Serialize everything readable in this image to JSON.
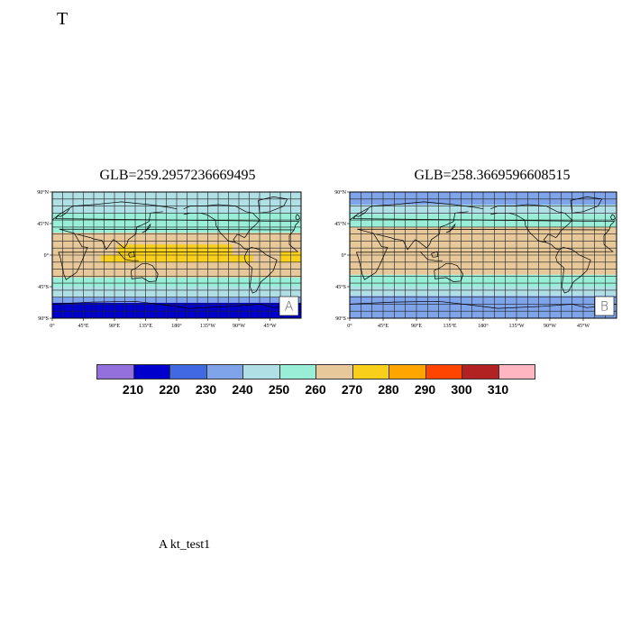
{
  "figure": {
    "title": "T",
    "caption": "A  kt_test1"
  },
  "panels": [
    {
      "title": "GLB=259.2957236669495",
      "tag": "A",
      "bands": [
        {
          "lat_top": 90,
          "lat_bottom": 80,
          "value_class": 4
        },
        {
          "lat_top": 80,
          "lat_bottom": 60,
          "value_class": 4
        },
        {
          "lat_top": 60,
          "lat_bottom": 42,
          "value_class": 5
        },
        {
          "lat_top": 42,
          "lat_bottom": 32,
          "value_class": 5
        },
        {
          "lat_top": 32,
          "lat_bottom": -20,
          "value_class": 6
        },
        {
          "lat_top": -20,
          "lat_bottom": -32,
          "value_class": 6
        },
        {
          "lat_top": -32,
          "lat_bottom": -45,
          "value_class": 5
        },
        {
          "lat_top": -45,
          "lat_bottom": -60,
          "value_class": 4
        },
        {
          "lat_top": -60,
          "lat_bottom": -68,
          "value_class": 3
        },
        {
          "lat_top": -68,
          "lat_bottom": -90,
          "value_class": 1
        }
      ],
      "warm_patches": [
        {
          "lon_from": 95,
          "lon_to": 260,
          "lat_top": 15,
          "lat_bottom": 0,
          "value_class": 7
        },
        {
          "lon_from": 70,
          "lon_to": 290,
          "lat_top": 0,
          "lat_bottom": -10,
          "value_class": 7
        },
        {
          "lon_from": 330,
          "lon_to": 360,
          "lat_top": 5,
          "lat_bottom": -10,
          "value_class": 7
        }
      ]
    },
    {
      "title": "GLB=258.3669596608515",
      "tag": "B",
      "bands": [
        {
          "lat_top": 90,
          "lat_bottom": 72,
          "value_class": 3
        },
        {
          "lat_top": 72,
          "lat_bottom": 58,
          "value_class": 4
        },
        {
          "lat_top": 58,
          "lat_bottom": 40,
          "value_class": 5
        },
        {
          "lat_top": 40,
          "lat_bottom": -28,
          "value_class": 6
        },
        {
          "lat_top": -28,
          "lat_bottom": -45,
          "value_class": 5
        },
        {
          "lat_top": -45,
          "lat_bottom": -58,
          "value_class": 4
        },
        {
          "lat_top": -58,
          "lat_bottom": -90,
          "value_class": 3
        }
      ],
      "warm_patches": []
    }
  ],
  "axes": {
    "lat_ticks": [
      {
        "lat": 90,
        "label": "90°N"
      },
      {
        "lat": 45,
        "label": "45°N"
      },
      {
        "lat": 0,
        "label": "0°"
      },
      {
        "lat": -45,
        "label": "45°S"
      },
      {
        "lat": -90,
        "label": "90°S"
      }
    ],
    "lon_ticks": [
      {
        "lon": 0,
        "label": "0°"
      },
      {
        "lon": 45,
        "label": "45°E"
      },
      {
        "lon": 90,
        "label": "90°E"
      },
      {
        "lon": 135,
        "label": "135°E"
      },
      {
        "lon": 180,
        "label": "180°"
      },
      {
        "lon": 225,
        "label": "135°W"
      },
      {
        "lon": 270,
        "label": "90°W"
      },
      {
        "lon": 315,
        "label": "45°W"
      }
    ],
    "grid_lon_step": 15,
    "grid_lat_step": 10
  },
  "colorbar": {
    "colors": [
      "#9370db",
      "#0000cd",
      "#4169e1",
      "#7fa4ea",
      "#b0e0e6",
      "#98eed7",
      "#e6c89a",
      "#f8d01c",
      "#ffa500",
      "#ff4500",
      "#b22222",
      "#ffb6c1"
    ],
    "labels": [
      "210",
      "220",
      "230",
      "240",
      "250",
      "260",
      "270",
      "280",
      "290",
      "300",
      "310"
    ]
  }
}
